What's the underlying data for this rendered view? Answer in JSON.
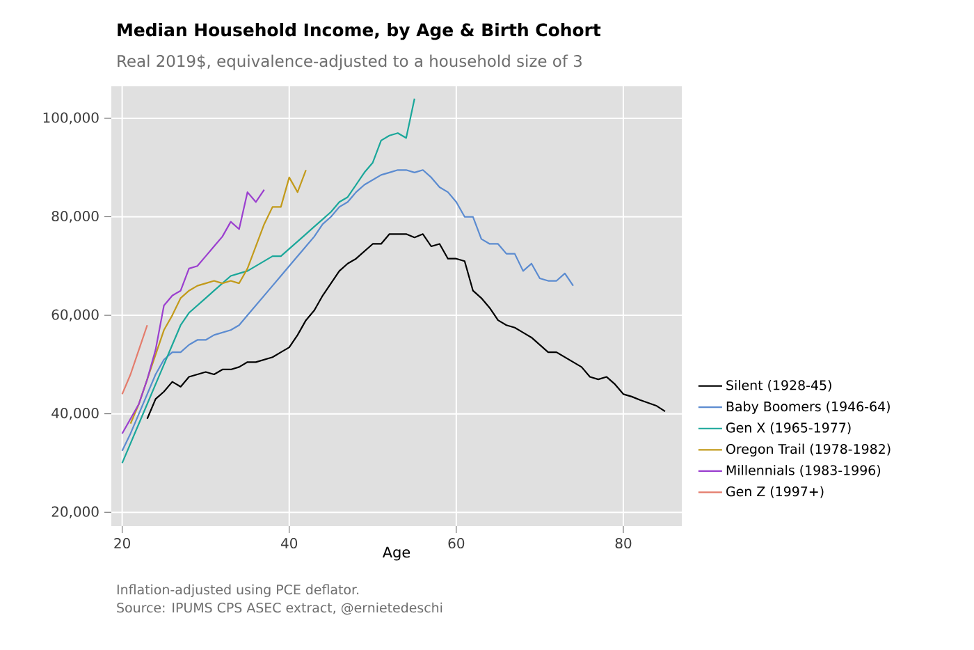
{
  "chart_data": {
    "type": "line",
    "title": "Median Household Income, by Age & Birth Cohort",
    "subtitle": "Real 2019$, equivalence-adjusted to a household size of 3",
    "xlabel": "Age",
    "annotations": [
      "Inflation-adjusted using PCE deflator.",
      "Source: IPUMS CPS ASEC extract, @ernietedeschi"
    ],
    "xlim": [
      18.7,
      87
    ],
    "ylim": [
      17200,
      106500
    ],
    "xticks": [
      20,
      40,
      60,
      80
    ],
    "yticks": [
      {
        "value": 20000,
        "label": "20,000"
      },
      {
        "value": 40000,
        "label": "40,000"
      },
      {
        "value": 60000,
        "label": "60,000"
      },
      {
        "value": 80000,
        "label": "80,000"
      },
      {
        "value": 100000,
        "label": "100,000"
      }
    ],
    "grid": true,
    "legend": "right",
    "marker": "none",
    "line_style": "solid",
    "series": [
      {
        "name": "Silent (1928-45)",
        "color": "#000000",
        "x": [
          23,
          24,
          25,
          26,
          27,
          28,
          29,
          30,
          31,
          32,
          33,
          34,
          35,
          36,
          37,
          38,
          39,
          40,
          41,
          42,
          43,
          44,
          45,
          46,
          47,
          48,
          49,
          50,
          51,
          52,
          53,
          54,
          55,
          56,
          57,
          58,
          59,
          60,
          61,
          62,
          63,
          64,
          65,
          66,
          67,
          68,
          69,
          70,
          71,
          72,
          73,
          74,
          75,
          76,
          77,
          78,
          79,
          80,
          81,
          82,
          83,
          84,
          85
        ],
        "values": [
          39000,
          43000,
          44500,
          46500,
          45500,
          47500,
          48000,
          48500,
          48000,
          49000,
          49000,
          49500,
          50500,
          50500,
          51000,
          51500,
          52500,
          53500,
          56000,
          59000,
          61000,
          64000,
          66500,
          69000,
          70500,
          71500,
          73000,
          74500,
          74500,
          76500,
          76500,
          76500,
          75800,
          76500,
          74000,
          74500,
          71500,
          71500,
          71000,
          65000,
          63500,
          61500,
          59000,
          58000,
          57500,
          56500,
          55500,
          54000,
          52500,
          52500,
          51500,
          50500,
          49500,
          47500,
          47000,
          47500,
          46000,
          44000,
          43500,
          42800,
          42200,
          41600,
          40500
        ]
      },
      {
        "name": "Baby Boomers (1946-64)",
        "color": "#5b8bd0",
        "x": [
          20,
          21,
          22,
          23,
          24,
          25,
          26,
          27,
          28,
          29,
          30,
          31,
          32,
          33,
          34,
          35,
          36,
          37,
          38,
          39,
          40,
          41,
          42,
          43,
          44,
          45,
          46,
          47,
          48,
          49,
          50,
          51,
          52,
          53,
          54,
          55,
          56,
          57,
          58,
          59,
          60,
          61,
          62,
          63,
          64,
          65,
          66,
          67,
          68,
          69,
          70,
          71,
          72,
          73,
          74
        ],
        "values": [
          32500,
          36000,
          40000,
          44000,
          48000,
          51000,
          52500,
          52500,
          54000,
          55000,
          55000,
          56000,
          56500,
          57000,
          58000,
          60000,
          62000,
          64000,
          66000,
          68000,
          70000,
          72000,
          74000,
          76000,
          78500,
          80000,
          82000,
          83000,
          85000,
          86500,
          87500,
          88500,
          89000,
          89500,
          89500,
          89000,
          89500,
          88000,
          86000,
          85000,
          83000,
          80000,
          80000,
          75500,
          74500,
          74500,
          72500,
          72500,
          69000,
          70500,
          67500,
          67000,
          67000,
          68500,
          66000
        ]
      },
      {
        "name": "Gen X (1965-1977)",
        "color": "#1aa79a",
        "x": [
          20,
          21,
          22,
          23,
          24,
          25,
          26,
          27,
          28,
          29,
          30,
          31,
          32,
          33,
          34,
          35,
          36,
          37,
          38,
          39,
          40,
          41,
          42,
          43,
          44,
          45,
          46,
          47,
          48,
          49,
          50,
          51,
          52,
          53,
          54,
          55
        ],
        "values": [
          30000,
          34000,
          38000,
          42000,
          46000,
          50000,
          54000,
          58000,
          60500,
          62000,
          63500,
          65000,
          66500,
          68000,
          68500,
          69000,
          70000,
          71000,
          72000,
          72000,
          73500,
          75000,
          76500,
          78000,
          79500,
          81000,
          83000,
          84000,
          86500,
          89000,
          91000,
          95500,
          96500,
          97000,
          96000,
          104000
        ]
      },
      {
        "name": "Oregon Trail (1978-1982)",
        "color": "#c29a1a",
        "x": [
          21,
          22,
          23,
          24,
          25,
          26,
          27,
          28,
          29,
          30,
          31,
          32,
          33,
          34,
          35,
          36,
          37,
          38,
          39,
          40,
          41,
          42
        ],
        "values": [
          38000,
          42000,
          null,
          52000,
          57000,
          60000,
          63500,
          65000,
          66000,
          66500,
          67000,
          66500,
          67000,
          66500,
          69500,
          74000,
          78500,
          82000,
          82000,
          88000,
          85000,
          89500
        ]
      },
      {
        "name": "Millennials (1983-1996)",
        "color": "#9b3fcf",
        "x": [
          20,
          21,
          22,
          23,
          24,
          25,
          26,
          27,
          28,
          29,
          30,
          31,
          32,
          33,
          34,
          35,
          36,
          37
        ],
        "values": [
          36000,
          39000,
          42000,
          47000,
          53000,
          62000,
          64000,
          65000,
          69500,
          70000,
          72000,
          74000,
          76000,
          79000,
          77500,
          85000,
          83000,
          85500
        ]
      },
      {
        "name": "Gen Z (1997+)",
        "color": "#e47c6c",
        "x": [
          20,
          21,
          22,
          23
        ],
        "values": [
          44000,
          48000,
          53000,
          58000
        ]
      }
    ]
  }
}
